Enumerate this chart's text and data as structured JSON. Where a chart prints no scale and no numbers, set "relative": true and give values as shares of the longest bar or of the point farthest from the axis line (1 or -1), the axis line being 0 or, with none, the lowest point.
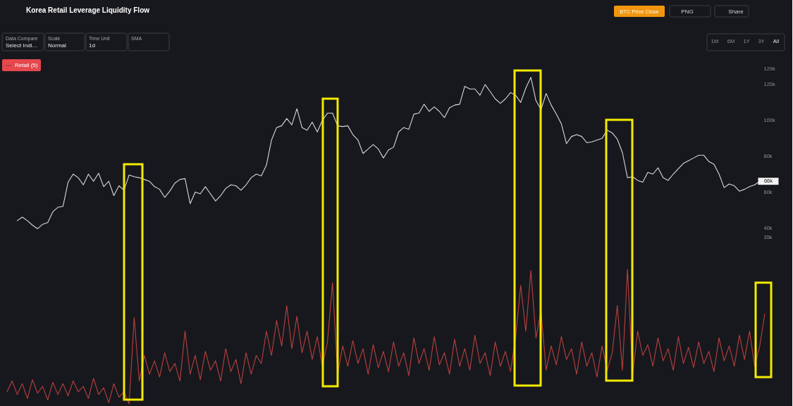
{
  "chart_data": [
    {
      "type": "line",
      "title": "Korea Retail Leverage Liquidity Flow",
      "categories": [
        null,
        null,
        null,
        null,
        null,
        null,
        null,
        null,
        null,
        null,
        null,
        null,
        null,
        null,
        null,
        null,
        null,
        null,
        null,
        null,
        null,
        null,
        null,
        null,
        null,
        null,
        null,
        null,
        null,
        null,
        null,
        null,
        null,
        null,
        null,
        null,
        null,
        null,
        null,
        null,
        null,
        null,
        null,
        null,
        null,
        null,
        null,
        null,
        null,
        null,
        null,
        null,
        null,
        null,
        null,
        null,
        null,
        null,
        null,
        null,
        null,
        null,
        null,
        null,
        null,
        null,
        null,
        null,
        null,
        null,
        null,
        null,
        null,
        null,
        null,
        null,
        null,
        null,
        null,
        null,
        null,
        null,
        null,
        null,
        null,
        null,
        null,
        null,
        null,
        null,
        null,
        null,
        null,
        null,
        null,
        null,
        null,
        null,
        null,
        null,
        null,
        null,
        null,
        null,
        null,
        null,
        null,
        null,
        null,
        null,
        null,
        null,
        null,
        null,
        null,
        null,
        null,
        null,
        null,
        null,
        null,
        null,
        null,
        null,
        null,
        null,
        null,
        null,
        null,
        null,
        null,
        null,
        null,
        null,
        null,
        null,
        null,
        null,
        null,
        null,
        null,
        null,
        null,
        null,
        null,
        null,
        null,
        null,
        null,
        null
      ],
      "series": [
        {
          "color": "#d9d9d9",
          "values": [
            null,
            null,
            44000,
            46000,
            44000,
            41500,
            39500,
            42000,
            43000,
            49000,
            51500,
            52000,
            65500,
            70000,
            68000,
            64000,
            70000,
            66000,
            70500,
            63000,
            66000,
            58000,
            63500,
            61000,
            69500,
            68500,
            68000,
            67000,
            66000,
            63000,
            61500,
            57000,
            60500,
            65000,
            67000,
            67500,
            53500,
            60000,
            59000,
            63000,
            59000,
            55000,
            58000,
            62000,
            64000,
            63500,
            61000,
            64000,
            68000,
            70000,
            69000,
            75000,
            89000,
            96000,
            97000,
            101000,
            97500,
            106500,
            96000,
            94500,
            99000,
            93500,
            100000,
            104000,
            104000,
            97000,
            96500,
            97000,
            92000,
            89000,
            81500,
            84000,
            86500,
            84000,
            79000,
            83500,
            85000,
            93500,
            96000,
            95000,
            103500,
            104000,
            109000,
            105000,
            107500,
            105000,
            101500,
            107000,
            108500,
            109000,
            119000,
            117500,
            117500,
            114000,
            120000,
            116000,
            112000,
            109500,
            112000,
            115500,
            114000,
            110000,
            118000,
            124000,
            111000,
            106000,
            115000,
            108500,
            103500,
            98000,
            87000,
            91000,
            92000,
            91000,
            87500,
            88000,
            89000,
            90000,
            94500,
            93000,
            89500,
            82000,
            68000,
            68500,
            66500,
            65500,
            71000,
            70000,
            73500,
            68000,
            66500,
            70000,
            73000,
            76000,
            77500,
            79000,
            80500,
            80500,
            77000,
            75500,
            70000,
            62500,
            64500,
            63500,
            60500,
            61500,
            63000,
            64000,
            66000,
            null
          ]
        }
      ],
      "ylim": [
        35000,
        129000
      ],
      "yticks": [
        {
          "value": 35000,
          "label": "35k"
        },
        {
          "value": 40000,
          "label": "40k"
        },
        {
          "value": 60000,
          "label": "60k"
        },
        {
          "value": 80000,
          "label": "80k"
        },
        {
          "value": 100000,
          "label": "100k"
        },
        {
          "value": 120000,
          "label": "120k"
        },
        {
          "value": 129000,
          "label": "129k"
        }
      ],
      "tick_labels": "y",
      "line_style": "solid",
      "annotations": [
        "BTC Price Close",
        "PNG",
        "Share",
        "Data Compare",
        "Select Indi…",
        "Scale",
        "Normal",
        "Time Unit",
        "1d",
        "SMA",
        "1M",
        "6M",
        "1Y",
        "3Y",
        "All",
        {
          "text": "66k",
          "y": 66000
        }
      ]
    },
    {
      "type": "line",
      "relative": true,
      "categories": [
        null,
        null,
        null,
        null,
        null,
        null,
        null,
        null,
        null,
        null,
        null,
        null,
        null,
        null,
        null,
        null,
        null,
        null,
        null,
        null,
        null,
        null,
        null,
        null,
        null,
        null,
        null,
        null,
        null,
        null,
        null,
        null,
        null,
        null,
        null,
        null,
        null,
        null,
        null,
        null,
        null,
        null,
        null,
        null,
        null,
        null,
        null,
        null,
        null,
        null,
        null,
        null,
        null,
        null,
        null,
        null,
        null,
        null,
        null,
        null,
        null,
        null,
        null,
        null,
        null,
        null,
        null,
        null,
        null,
        null,
        null,
        null,
        null,
        null,
        null,
        null,
        null,
        null,
        null,
        null,
        null,
        null,
        null,
        null,
        null,
        null,
        null,
        null,
        null,
        null,
        null,
        null,
        null,
        null,
        null,
        null,
        null,
        null,
        null,
        null,
        null,
        null,
        null,
        null,
        null,
        null,
        null,
        null,
        null,
        null,
        null,
        null,
        null,
        null,
        null,
        null,
        null,
        null,
        null,
        null,
        null,
        null,
        null,
        null,
        null,
        null,
        null,
        null,
        null,
        null,
        null,
        null,
        null,
        null,
        null,
        null,
        null,
        null,
        null,
        null,
        null,
        null,
        null,
        null,
        null,
        null,
        null,
        null,
        null,
        null
      ],
      "series": [
        {
          "name": "Retail (5)",
          "color": "#b9403f",
          "values": [
            0.09,
            0.17,
            0.07,
            0.15,
            0.04,
            0.18,
            0.08,
            0.13,
            0.03,
            0.16,
            0.07,
            0.15,
            0.06,
            0.17,
            0.09,
            0.13,
            0.04,
            0.19,
            0.07,
            0.12,
            0.01,
            0.15,
            0.05,
            0.09,
            0,
            0.64,
            0.17,
            0.36,
            0.22,
            0.32,
            0.2,
            0.38,
            0.24,
            0.3,
            0.17,
            0.54,
            0.22,
            0.36,
            0.18,
            0.39,
            0.25,
            0.32,
            0.17,
            0.41,
            0.24,
            0.33,
            0.15,
            0.38,
            0.22,
            0.36,
            0.3,
            0.54,
            0.36,
            0.62,
            0.43,
            0.73,
            0.41,
            0.65,
            0.38,
            0.54,
            0.33,
            0.5,
            0.28,
            0.46,
            0.9,
            0.22,
            0.43,
            0.28,
            0.47,
            0.3,
            0.41,
            0.22,
            0.44,
            0.27,
            0.39,
            0.24,
            0.46,
            0.28,
            0.38,
            0.21,
            0.49,
            0.3,
            0.41,
            0.25,
            0.5,
            0.29,
            0.38,
            0.22,
            0.48,
            0.28,
            0.41,
            0.25,
            0.51,
            0.3,
            0.38,
            0.21,
            0.46,
            0.28,
            0.39,
            0.24,
            0.49,
            0.88,
            0.54,
            0.99,
            0.49,
            0.69,
            0.25,
            0.43,
            0.29,
            0.5,
            0.33,
            0.41,
            0.22,
            0.46,
            0.28,
            0.38,
            0.2,
            0.43,
            0.25,
            0.38,
            0.73,
            0.25,
            1,
            0.22,
            0.54,
            0.36,
            0.44,
            0.28,
            0.49,
            0.32,
            0.41,
            0.25,
            0.5,
            0.3,
            0.42,
            0.27,
            0.46,
            0.3,
            0.39,
            0.24,
            0.49,
            0.32,
            0.43,
            0.28,
            0.51,
            0.33,
            0.54,
            0.28,
            0.43,
            0.67
          ]
        }
      ],
      "legend": "top left",
      "line_style": "solid",
      "tick_labels": false
    }
  ]
}
